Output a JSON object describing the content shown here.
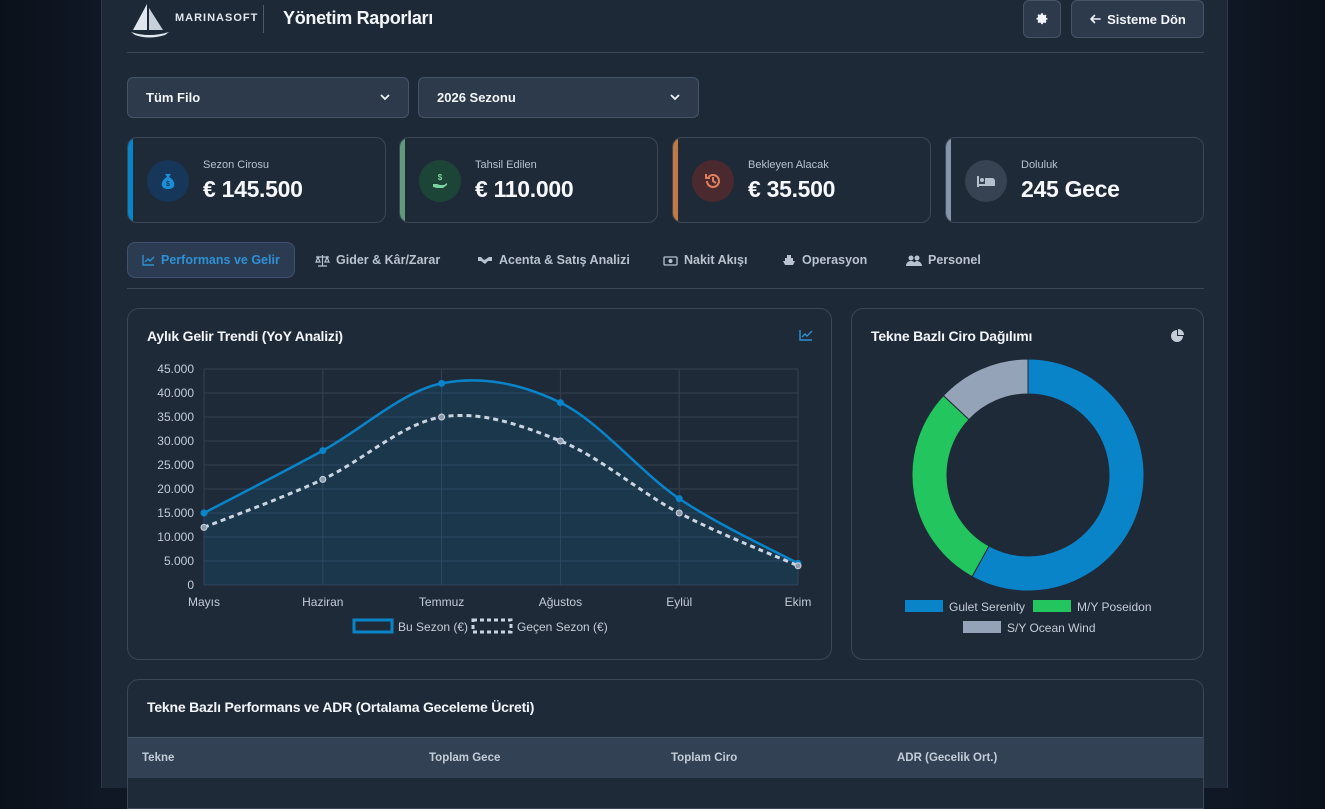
{
  "header": {
    "brand": "MARINASOFT",
    "title": "Yönetim Raporları",
    "back_label": "Sisteme Dön"
  },
  "filters": {
    "fleet": "Tüm Filo",
    "season": "2026 Sezonu"
  },
  "kpis": [
    {
      "label": "Sezon Cirosu",
      "value": "€ 145.500",
      "color": "#0a84c9",
      "icon": "money-bag-icon"
    },
    {
      "label": "Tahsil Edilen",
      "value": "€ 110.000",
      "color": "#5f9a7c",
      "icon": "hand-dollar-icon"
    },
    {
      "label": "Bekleyen Alacak",
      "value": "€ 35.500",
      "color": "#c27a45",
      "icon": "history-icon"
    },
    {
      "label": "Doluluk",
      "value": "245 Gece",
      "color": "#8596aa",
      "icon": "bed-icon"
    }
  ],
  "tabs": [
    {
      "label": "Performans ve Gelir",
      "icon": "chart-line-icon"
    },
    {
      "label": "Gider & Kâr/Zarar",
      "icon": "scale-icon"
    },
    {
      "label": "Acenta & Satış Analizi",
      "icon": "handshake-icon"
    },
    {
      "label": "Nakit Akışı",
      "icon": "cash-icon"
    },
    {
      "label": "Operasyon",
      "icon": "ship-icon"
    },
    {
      "label": "Personel",
      "icon": "users-icon"
    }
  ],
  "trend_card": {
    "title": "Aylık Gelir Trendi (YoY Analizi)"
  },
  "donut_card": {
    "title": "Tekne Bazlı Ciro Dağılımı"
  },
  "table_card": {
    "title": "Tekne Bazlı Performans ve ADR (Ortalama Geceleme Ücreti)",
    "columns": [
      "Tekne",
      "Toplam Gece",
      "Toplam Ciro",
      "ADR (Gecelik Ort.)"
    ]
  },
  "chart_data": [
    {
      "type": "line",
      "x": [
        "Mayıs",
        "Haziran",
        "Temmuz",
        "Ağustos",
        "Eylül",
        "Ekim"
      ],
      "series": [
        {
          "name": "Bu Sezon (€)",
          "values": [
            15000,
            28000,
            42000,
            38000,
            18000,
            4500
          ],
          "color": "#0a84c9",
          "style": "solid"
        },
        {
          "name": "Geçen Sezon (€)",
          "values": [
            12000,
            22000,
            35000,
            30000,
            15000,
            4000
          ],
          "color": "#cbd5e1",
          "style": "dashed"
        }
      ],
      "ylim": [
        0,
        45000
      ],
      "yticks": [
        "0",
        "5.000",
        "10.000",
        "15.000",
        "20.000",
        "25.000",
        "30.000",
        "35.000",
        "40.000",
        "45.000"
      ],
      "grid": true,
      "legend": "bottom"
    },
    {
      "type": "pie",
      "categories": [
        "Gulet Serenity",
        "M/Y Poseidon",
        "S/Y Ocean Wind"
      ],
      "values": [
        58,
        29,
        13
      ],
      "colors": [
        "#0a84c9",
        "#22c55e",
        "#94a3b8"
      ],
      "legend": "bottom"
    }
  ]
}
